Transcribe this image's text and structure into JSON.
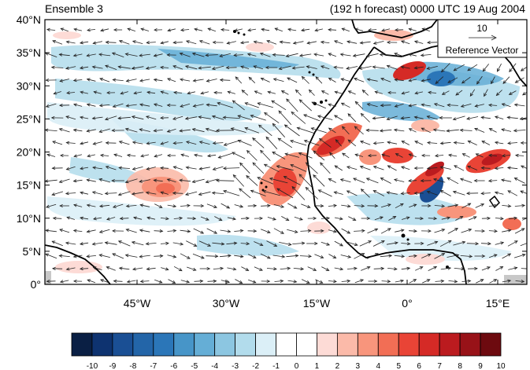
{
  "header": {
    "title_left": "Ensemble 3",
    "title_right": "(192 h forecast) 0000 UTC 19 Aug 2004"
  },
  "reference_vector": {
    "magnitude": "10",
    "label": "Reference Vector"
  },
  "axes": {
    "lat_labels": [
      "40°N",
      "35°N",
      "30°N",
      "25°N",
      "20°N",
      "15°N",
      "10°N",
      "5°N",
      "0°"
    ],
    "lon_labels": [
      "45°W",
      "30°W",
      "15°W",
      "0°",
      "15°E"
    ]
  },
  "colorbar": {
    "labels": [
      "-10",
      "-9",
      "-8",
      "-7",
      "-6",
      "-5",
      "-4",
      "-3",
      "-2",
      "-1",
      "0",
      "1",
      "2",
      "3",
      "4",
      "5",
      "6",
      "7",
      "8",
      "9",
      "10"
    ],
    "colors": [
      "#0a1f44",
      "#0e3370",
      "#1a4f94",
      "#2365a8",
      "#2b76b8",
      "#4795c8",
      "#65aed6",
      "#8cc6e1",
      "#b2dcec",
      "#dbeff7",
      "#ffffff",
      "#ffffff",
      "#fddbd6",
      "#fbbaa9",
      "#f8957c",
      "#f26e55",
      "#e94436",
      "#d52a26",
      "#bb1b1f",
      "#981218",
      "#6d0a0f"
    ]
  },
  "colors": {
    "land_gray": "#c8c8c8",
    "coast": "#000000",
    "arrow": "#222222"
  }
}
